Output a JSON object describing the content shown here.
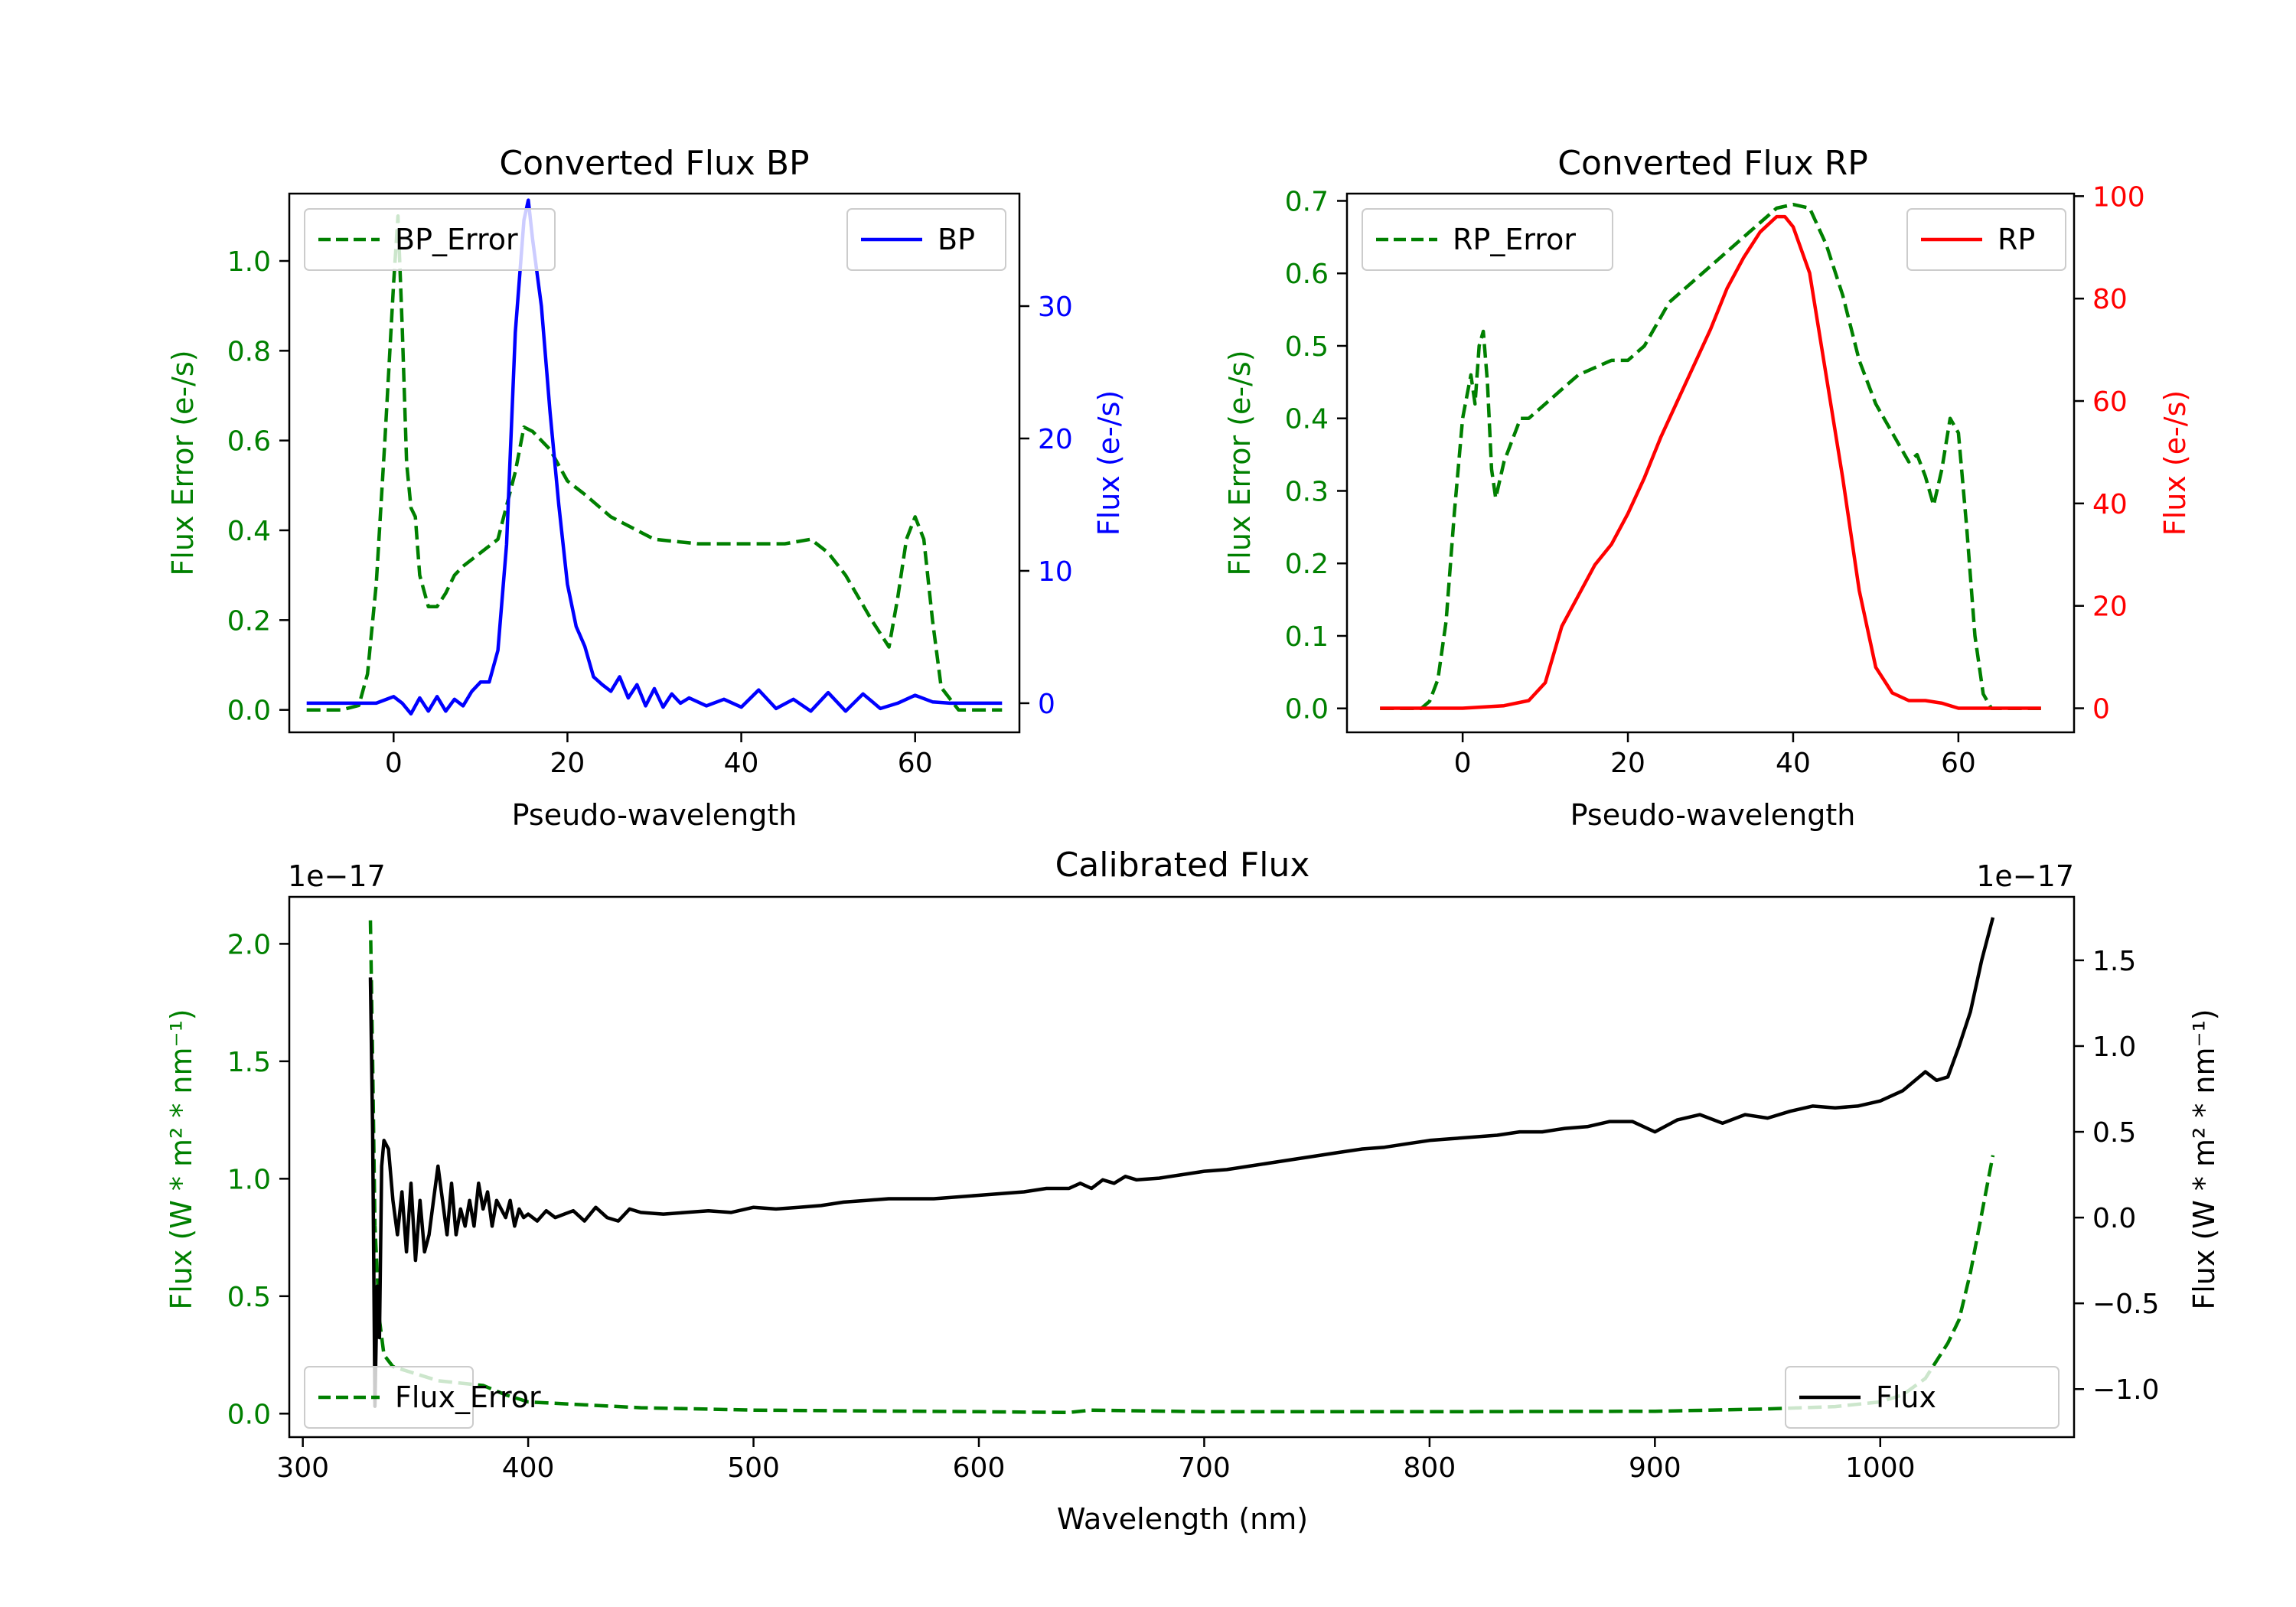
{
  "colors": {
    "green": "#008000",
    "blue": "#0000ff",
    "red": "#ff0000",
    "black": "#000000",
    "legend_border": "#cccccc"
  },
  "chart_data": [
    {
      "id": "bp",
      "type": "line",
      "title": "Converted Flux BP",
      "xlabel": "Pseudo-wavelength",
      "ylabel_left": "Flux Error (e-/s)",
      "ylabel_right": "Flux (e-/s)",
      "xlim": [
        -12,
        72
      ],
      "ylim_left": [
        -0.05,
        1.15
      ],
      "ylim_right": [
        -2.2,
        38.5
      ],
      "xticks": [
        0,
        20,
        40,
        60
      ],
      "yticks_left": [
        0.0,
        0.2,
        0.4,
        0.6,
        0.8,
        1.0
      ],
      "yticks_right": [
        0,
        10,
        20,
        30
      ],
      "legend_left": "top-left",
      "legend_right": "top-right",
      "series": [
        {
          "name": "BP_Error",
          "axis": "left",
          "style": "dashed",
          "color": "#008000",
          "x": [
            -10,
            -6,
            -4,
            -3,
            -2,
            -1,
            0,
            0.5,
            1,
            1.5,
            2,
            2.5,
            3,
            4,
            5,
            6,
            7,
            8,
            10,
            12,
            14,
            15,
            16,
            18,
            20,
            22,
            25,
            28,
            30,
            35,
            40,
            45,
            48,
            50,
            52,
            55,
            57,
            58,
            59,
            60,
            61,
            62,
            63,
            65,
            70
          ],
          "y": [
            0,
            0,
            0.01,
            0.08,
            0.28,
            0.6,
            0.95,
            1.1,
            0.85,
            0.55,
            0.45,
            0.43,
            0.3,
            0.23,
            0.23,
            0.26,
            0.3,
            0.32,
            0.35,
            0.38,
            0.53,
            0.63,
            0.62,
            0.58,
            0.51,
            0.48,
            0.43,
            0.4,
            0.38,
            0.37,
            0.37,
            0.37,
            0.38,
            0.35,
            0.3,
            0.2,
            0.14,
            0.25,
            0.38,
            0.43,
            0.38,
            0.2,
            0.05,
            0,
            0
          ]
        },
        {
          "name": "BP",
          "axis": "right",
          "style": "solid",
          "color": "#0000ff",
          "x": [
            -10,
            -2,
            0,
            1,
            2,
            3,
            4,
            5,
            6,
            7,
            8,
            9,
            10,
            11,
            12,
            13,
            14,
            15,
            15.5,
            16,
            17,
            18,
            19,
            20,
            21,
            22,
            23,
            24,
            25,
            26,
            27,
            28,
            29,
            30,
            31,
            32,
            33,
            34,
            36,
            38,
            40,
            42,
            44,
            46,
            48,
            50,
            52,
            54,
            56,
            58,
            60,
            62,
            64,
            66,
            70
          ],
          "y": [
            0,
            0,
            0.5,
            0,
            -0.8,
            0.4,
            -0.6,
            0.5,
            -0.6,
            0.3,
            -0.2,
            0.9,
            1.6,
            1.6,
            4,
            12,
            28,
            36.5,
            38,
            35,
            30,
            22,
            15,
            9,
            5.8,
            4.3,
            2,
            1.4,
            0.9,
            2,
            0.4,
            1.4,
            -0.2,
            1.1,
            -0.3,
            0.7,
            0,
            0.4,
            -0.2,
            0.3,
            -0.3,
            1,
            -0.4,
            0.3,
            -0.6,
            0.8,
            -0.6,
            0.7,
            -0.4,
            0,
            0.6,
            0.1,
            0,
            0,
            0
          ]
        }
      ]
    },
    {
      "id": "rp",
      "type": "line",
      "title": "Converted Flux RP",
      "xlabel": "Pseudo-wavelength",
      "ylabel_left": "Flux Error (e-/s)",
      "ylabel_right": "Flux (e-/s)",
      "xlim": [
        -14,
        74
      ],
      "ylim_left": [
        -0.033,
        0.71
      ],
      "ylim_right": [
        -4.7,
        100.5
      ],
      "xticks": [
        0,
        20,
        40,
        60
      ],
      "yticks_left": [
        0.0,
        0.1,
        0.2,
        0.3,
        0.4,
        0.5,
        0.6,
        0.7
      ],
      "yticks_right": [
        0,
        20,
        40,
        60,
        80,
        100
      ],
      "legend_left": "top-left",
      "legend_right": "top-right",
      "series": [
        {
          "name": "RP_Error",
          "axis": "left",
          "style": "dashed",
          "color": "#008000",
          "x": [
            -10,
            -5,
            -4,
            -3,
            -2,
            -1,
            0,
            1,
            1.5,
            2,
            2.5,
            3,
            3.5,
            4,
            5,
            6,
            7,
            8,
            10,
            12,
            14,
            16,
            18,
            20,
            22,
            25,
            28,
            30,
            32,
            35,
            38,
            40,
            42,
            44,
            46,
            48,
            50,
            52,
            54,
            55,
            56,
            57,
            58,
            59,
            60,
            61,
            62,
            63,
            64,
            66,
            70
          ],
          "y": [
            0,
            0,
            0.01,
            0.04,
            0.12,
            0.27,
            0.4,
            0.46,
            0.42,
            0.5,
            0.52,
            0.45,
            0.33,
            0.29,
            0.34,
            0.37,
            0.4,
            0.4,
            0.42,
            0.44,
            0.46,
            0.47,
            0.48,
            0.48,
            0.5,
            0.56,
            0.59,
            0.61,
            0.63,
            0.66,
            0.69,
            0.695,
            0.69,
            0.64,
            0.57,
            0.48,
            0.42,
            0.38,
            0.34,
            0.35,
            0.32,
            0.28,
            0.33,
            0.4,
            0.38,
            0.25,
            0.1,
            0.02,
            0,
            0,
            0
          ]
        },
        {
          "name": "RP",
          "axis": "right",
          "style": "solid",
          "color": "#ff0000",
          "x": [
            -10,
            0,
            5,
            8,
            10,
            12,
            14,
            16,
            18,
            20,
            22,
            24,
            26,
            28,
            30,
            32,
            34,
            36,
            38,
            39,
            40,
            42,
            44,
            46,
            48,
            50,
            52,
            54,
            56,
            58,
            60,
            62,
            65,
            70
          ],
          "y": [
            0,
            0,
            0.5,
            1.5,
            5,
            16,
            22,
            28,
            32,
            38,
            45,
            53,
            60,
            67,
            74,
            82,
            88,
            93,
            96,
            96,
            94,
            85,
            65,
            45,
            23,
            8,
            3,
            1.5,
            1.5,
            1,
            0,
            0,
            0,
            0
          ]
        }
      ]
    },
    {
      "id": "calibrated",
      "type": "line",
      "title": "Calibrated Flux",
      "xlabel": "Wavelength (nm)",
      "ylabel_left": "Flux (W * m² * nm⁻¹)",
      "ylabel_right": "Flux (W * m² * nm⁻¹)",
      "offset_left": "1e−17",
      "offset_right": "1e−17",
      "xlim": [
        294,
        1086
      ],
      "ylim_left": [
        -0.1,
        2.2
      ],
      "ylim_right": [
        -1.28,
        1.87
      ],
      "xticks": [
        300,
        400,
        500,
        600,
        700,
        800,
        900,
        1000
      ],
      "yticks_left": [
        0.0,
        0.5,
        1.0,
        1.5,
        2.0
      ],
      "yticks_right": [
        "−1.0",
        "−0.5",
        "0.0",
        "0.5",
        "1.0",
        "1.5"
      ],
      "legend_left": "bottom-left",
      "legend_right": "bottom-right",
      "series": [
        {
          "name": "Flux_Error",
          "axis": "left",
          "style": "dashed",
          "color": "#008000",
          "x": [
            330,
            331,
            332,
            334,
            336,
            340,
            350,
            360,
            380,
            390,
            400,
            450,
            500,
            600,
            640,
            650,
            700,
            800,
            900,
            950,
            980,
            1000,
            1010,
            1020,
            1030,
            1035,
            1040,
            1045,
            1050
          ],
          "y": [
            2.1,
            1.5,
            0.8,
            0.4,
            0.25,
            0.2,
            0.17,
            0.14,
            0.12,
            0.08,
            0.05,
            0.025,
            0.015,
            0.008,
            0.005,
            0.015,
            0.008,
            0.008,
            0.01,
            0.02,
            0.03,
            0.05,
            0.08,
            0.15,
            0.3,
            0.4,
            0.6,
            0.85,
            1.1
          ]
        },
        {
          "name": "Flux",
          "axis": "right",
          "style": "solid",
          "color": "#000000",
          "x": [
            330,
            331,
            332,
            333,
            334,
            335,
            336,
            338,
            340,
            342,
            344,
            346,
            348,
            350,
            352,
            354,
            356,
            358,
            360,
            362,
            364,
            366,
            368,
            370,
            372,
            374,
            376,
            378,
            380,
            382,
            384,
            386,
            388,
            390,
            392,
            394,
            396,
            398,
            400,
            404,
            408,
            412,
            416,
            420,
            425,
            430,
            435,
            440,
            445,
            450,
            460,
            470,
            480,
            490,
            500,
            510,
            520,
            530,
            540,
            550,
            560,
            580,
            600,
            620,
            630,
            640,
            645,
            650,
            655,
            660,
            665,
            670,
            680,
            690,
            700,
            710,
            720,
            730,
            740,
            750,
            760,
            770,
            780,
            790,
            800,
            810,
            820,
            830,
            840,
            850,
            860,
            870,
            880,
            890,
            900,
            910,
            920,
            930,
            940,
            950,
            960,
            970,
            980,
            990,
            1000,
            1010,
            1020,
            1025,
            1030,
            1035,
            1040,
            1045,
            1050
          ],
          "y": [
            1.4,
            0.5,
            -1.1,
            -0.4,
            -0.7,
            0.3,
            0.45,
            0.4,
            0.1,
            -0.1,
            0.15,
            -0.2,
            0.2,
            -0.25,
            0.1,
            -0.2,
            -0.1,
            0.1,
            0.3,
            0.1,
            -0.1,
            0.2,
            -0.1,
            0.05,
            -0.05,
            0.1,
            -0.05,
            0.2,
            0.05,
            0.15,
            -0.05,
            0.1,
            0.05,
            0,
            0.1,
            -0.05,
            0.05,
            0,
            0.02,
            -0.02,
            0.04,
            0,
            0.02,
            0.04,
            -0.02,
            0.06,
            0,
            -0.02,
            0.05,
            0.03,
            0.02,
            0.03,
            0.04,
            0.03,
            0.06,
            0.05,
            0.06,
            0.07,
            0.09,
            0.1,
            0.11,
            0.11,
            0.13,
            0.15,
            0.17,
            0.17,
            0.2,
            0.17,
            0.22,
            0.2,
            0.24,
            0.22,
            0.23,
            0.25,
            0.27,
            0.28,
            0.3,
            0.32,
            0.34,
            0.36,
            0.38,
            0.4,
            0.41,
            0.43,
            0.45,
            0.46,
            0.47,
            0.48,
            0.5,
            0.5,
            0.52,
            0.53,
            0.56,
            0.56,
            0.5,
            0.57,
            0.6,
            0.55,
            0.6,
            0.58,
            0.62,
            0.65,
            0.64,
            0.65,
            0.68,
            0.74,
            0.85,
            0.8,
            0.82,
            1.0,
            1.2,
            1.5,
            1.75
          ]
        }
      ]
    }
  ]
}
